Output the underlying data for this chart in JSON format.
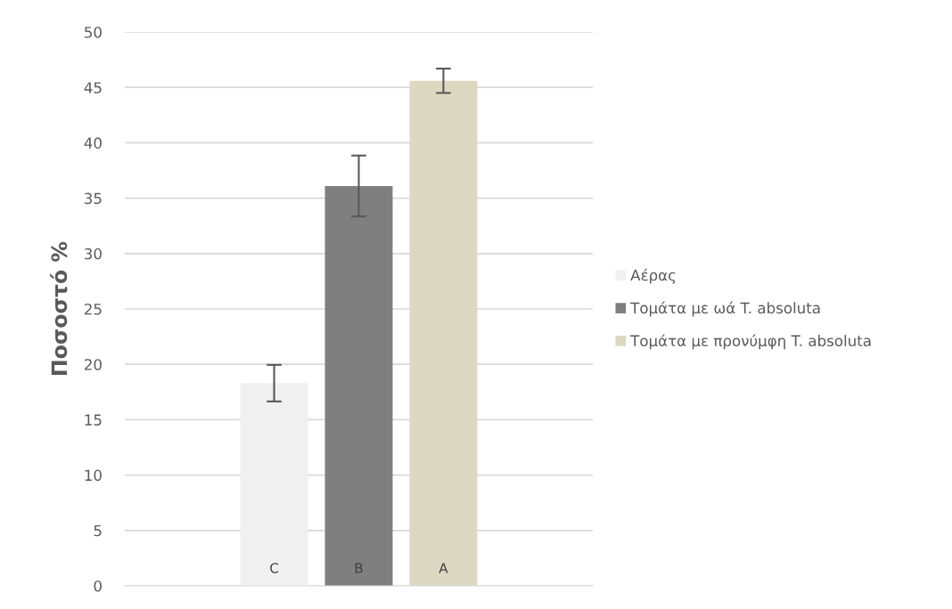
{
  "chart_data": {
    "type": "bar",
    "ylabel": "Ποσοστό %",
    "categories": [
      null
    ],
    "series": [
      {
        "name": "Αέρας",
        "color": "#f0f0f0",
        "values": [
          18.3
        ],
        "errors": [
          1.65
        ]
      },
      {
        "name": "Τομάτα με ωά T. absoluta",
        "color": "#7f7f7f",
        "values": [
          36.1
        ],
        "errors": [
          2.75
        ]
      },
      {
        "name": "Τομάτα με προνύμφη T. absoluta",
        "color": "#ddd8c2",
        "values": [
          45.6
        ],
        "errors": [
          1.1
        ]
      }
    ],
    "annotations": [
      "C",
      "B",
      "A"
    ],
    "ylim": [
      0,
      50
    ],
    "yticks": [
      0,
      5,
      10,
      15,
      20,
      25,
      30,
      35,
      40,
      45,
      50
    ],
    "grid": "y",
    "legend": "right"
  }
}
